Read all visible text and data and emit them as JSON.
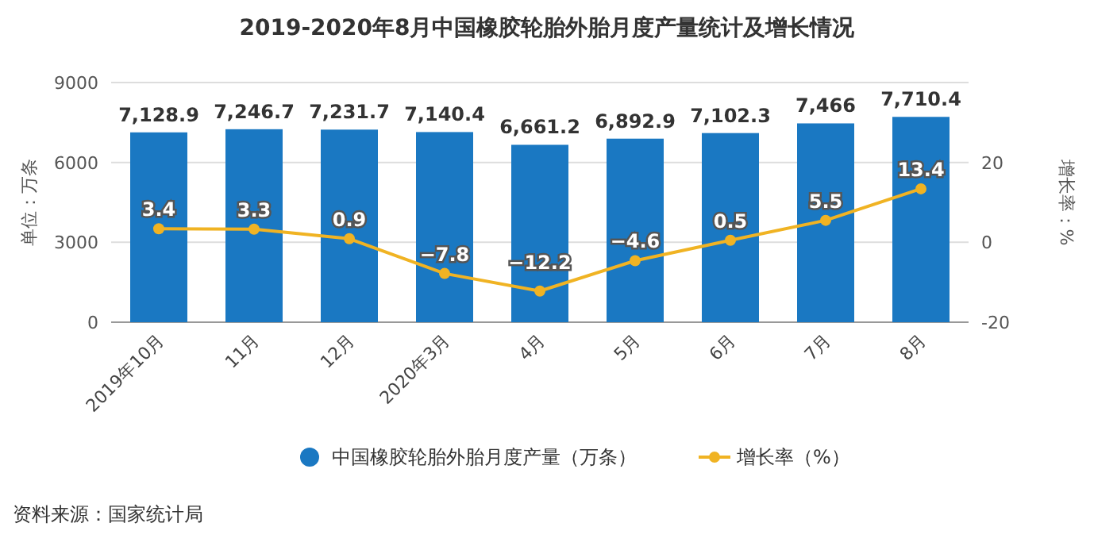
{
  "chart_data": {
    "type": "bar",
    "title": "2019-2020年8月中国橡胶轮胎外胎月度产量统计及增长情况",
    "categories": [
      "2019年10月",
      "11月",
      "12月",
      "2020年3月",
      "4月",
      "5月",
      "6月",
      "7月",
      "8月"
    ],
    "series": [
      {
        "name": "中国橡胶轮胎外胎月度产量（万条）",
        "color": "#1a78c2",
        "values": [
          7128.9,
          7246.7,
          7231.7,
          7140.4,
          6661.2,
          6892.9,
          7102.3,
          7466,
          7710.4
        ],
        "value_labels": [
          "7,128.9",
          "7,246.7",
          "7,231.7",
          "7,140.4",
          "6,661.2",
          "6,892.9",
          "7,102.3",
          "7,466",
          "7,710.4"
        ]
      },
      {
        "name": "增长率（%）",
        "type": "line",
        "axis": "y2",
        "color": "#f0b323",
        "marker": "circle",
        "values": [
          3.4,
          3.3,
          0.9,
          -7.8,
          -12.2,
          -4.6,
          0.5,
          5.5,
          13.4
        ]
      }
    ],
    "ylim": [
      0,
      9000
    ],
    "yticks": [
      0,
      3000,
      6000,
      9000
    ],
    "y2lim": [
      -20,
      40
    ],
    "y2ticks": [
      -20,
      0,
      20
    ],
    "ylabel": "单位：万条",
    "y2label": "增长率：%",
    "grid": "y",
    "data_labels": true,
    "legend": "bottom",
    "annotations": [
      "资料来源：国家统计局"
    ]
  }
}
